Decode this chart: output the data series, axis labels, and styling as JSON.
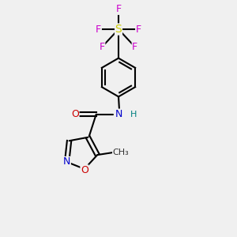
{
  "background_color": "#f0f0f0",
  "bond_color": "#000000",
  "aromatic_bond_color": "#000000",
  "atoms": {
    "S": {
      "color": "#cccc00",
      "symbol": "S"
    },
    "F": {
      "color": "#cc00cc",
      "symbol": "F"
    },
    "N": {
      "color": "#0000cc",
      "symbol": "N"
    },
    "O_red": {
      "color": "#cc0000",
      "symbol": "O"
    },
    "O_amide": {
      "color": "#cc0000",
      "symbol": "O"
    },
    "N_isox": {
      "color": "#0000cc",
      "symbol": "N"
    },
    "O_isox": {
      "color": "#cc0000",
      "symbol": "O"
    },
    "H": {
      "color": "#008080",
      "symbol": "H"
    },
    "C_methyl": {
      "color": "#000000",
      "symbol": "CH₃"
    }
  },
  "figsize": [
    3.0,
    3.0
  ],
  "dpi": 100
}
